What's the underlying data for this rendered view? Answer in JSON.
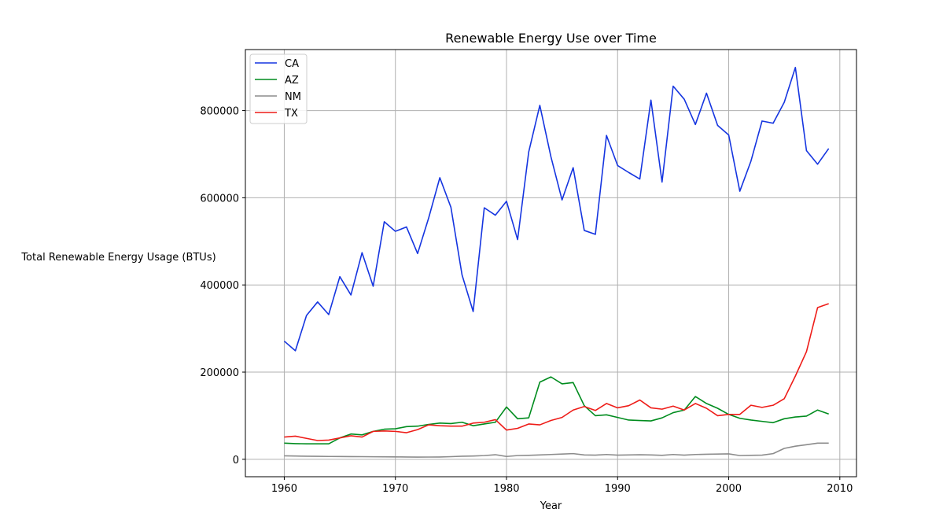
{
  "chart_data": {
    "type": "line",
    "title": "Renewable Energy Use over Time",
    "xlabel": "Year",
    "ylabel": "Total Renewable Energy Usage (BTUs)",
    "xlim": [
      1956.5,
      2011.5
    ],
    "ylim": [
      -40000,
      940000
    ],
    "xticks": [
      1960,
      1970,
      1980,
      1990,
      2000,
      2010
    ],
    "yticks": [
      0,
      200000,
      400000,
      600000,
      800000
    ],
    "grid": true,
    "legend_position": "top-left",
    "x": [
      1960,
      1961,
      1962,
      1963,
      1964,
      1965,
      1966,
      1967,
      1968,
      1969,
      1970,
      1971,
      1972,
      1973,
      1974,
      1975,
      1976,
      1977,
      1978,
      1979,
      1980,
      1981,
      1982,
      1983,
      1984,
      1985,
      1986,
      1987,
      1988,
      1989,
      1990,
      1991,
      1992,
      1993,
      1994,
      1995,
      1996,
      1997,
      1998,
      1999,
      2000,
      2001,
      2002,
      2003,
      2004,
      2005,
      2006,
      2007,
      2008,
      2009
    ],
    "series": [
      {
        "name": "CA",
        "color": "#1535e0",
        "values": [
          271000,
          249000,
          330000,
          361000,
          332000,
          419000,
          377000,
          474000,
          397000,
          545000,
          523000,
          533000,
          472000,
          554000,
          646000,
          578000,
          423000,
          339000,
          577000,
          560000,
          592000,
          504000,
          705000,
          812000,
          694000,
          595000,
          669000,
          525000,
          516000,
          743000,
          674000,
          658000,
          643000,
          824000,
          636000,
          856000,
          826000,
          768000,
          840000,
          766000,
          744000,
          615000,
          684000,
          776000,
          771000,
          819000,
          899000,
          708000,
          677000,
          713000
        ]
      },
      {
        "name": "AZ",
        "color": "#008c1e",
        "values": [
          37000,
          36000,
          35500,
          35500,
          35500,
          49000,
          58000,
          56000,
          64000,
          69000,
          70000,
          75000,
          76000,
          80000,
          83000,
          82000,
          85000,
          77000,
          81000,
          85000,
          120000,
          93000,
          95000,
          177000,
          189000,
          173000,
          176000,
          123000,
          100000,
          102000,
          96000,
          90000,
          89000,
          88000,
          95000,
          107000,
          113000,
          144000,
          128000,
          117000,
          103000,
          94000,
          90000,
          87000,
          84000,
          93000,
          97000,
          99000,
          113000,
          104000
        ]
      },
      {
        "name": "NM",
        "color": "#8c8c8c",
        "values": [
          8000,
          7500,
          7000,
          6800,
          6500,
          6300,
          6200,
          6000,
          5800,
          5600,
          5500,
          5200,
          5000,
          5100,
          5300,
          6000,
          7000,
          7500,
          8500,
          10500,
          6500,
          8500,
          9000,
          10000,
          11000,
          12000,
          13000,
          10000,
          9500,
          11000,
          9500,
          10000,
          10500,
          10000,
          9000,
          11000,
          9500,
          11000,
          11500,
          12000,
          12500,
          8500,
          9000,
          9500,
          13000,
          25000,
          30000,
          33500,
          37000,
          37000
        ]
      },
      {
        "name": "TX",
        "color": "#ee1c18",
        "values": [
          51000,
          53000,
          48000,
          43000,
          44000,
          49000,
          54000,
          51000,
          64000,
          65000,
          64000,
          61000,
          68000,
          79000,
          77000,
          76000,
          76000,
          83000,
          85000,
          91000,
          67000,
          71000,
          81000,
          79000,
          89000,
          96000,
          113000,
          121000,
          112000,
          128000,
          118000,
          123000,
          136000,
          118000,
          115000,
          122000,
          113000,
          128000,
          117000,
          100000,
          103000,
          103000,
          124000,
          119000,
          124000,
          139000,
          191000,
          247000,
          348000,
          357000
        ]
      }
    ]
  }
}
